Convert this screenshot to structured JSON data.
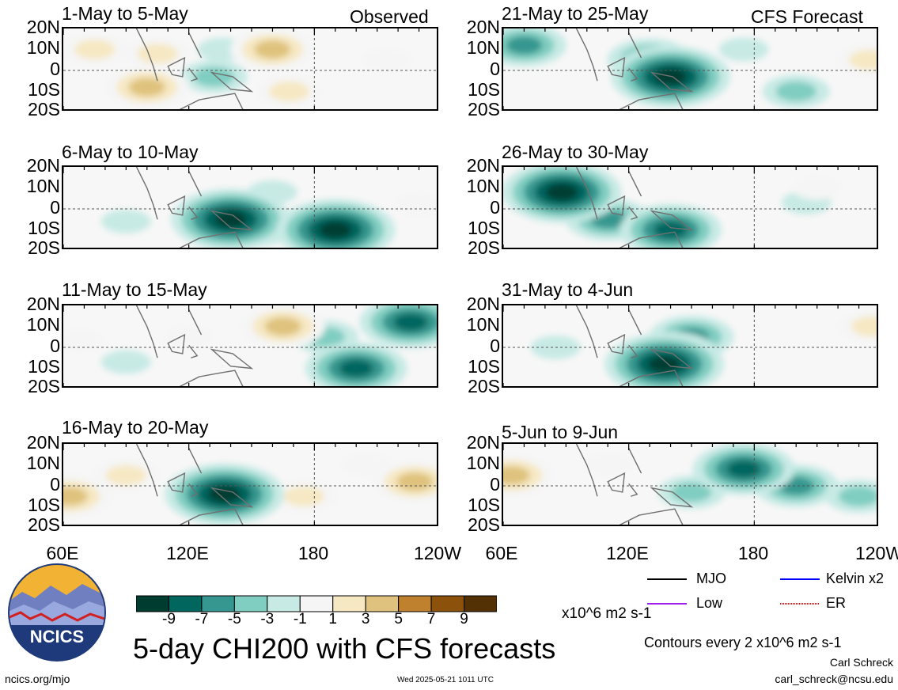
{
  "figure": {
    "title": "5-day CHI200 with CFS forecasts",
    "observed_label": "Observed",
    "forecast_label": "CFS Forecast",
    "site": "ncics.org/mjo",
    "timestamp": "Wed 2025-05-21 1011 UTC",
    "author": "Carl Schreck",
    "email": "carl_schreck@ncsu.edu",
    "contour_note": "Contours every 2 x10^6 m2 s-1",
    "logo_text": "NCICS"
  },
  "colorbar": {
    "ticks": [
      "-9",
      "-7",
      "-5",
      "-3",
      "-1",
      "1",
      "3",
      "5",
      "7",
      "9"
    ],
    "units": "x10^6 m2 s-1",
    "colors": [
      "#003c30",
      "#01665e",
      "#35978f",
      "#80cdc1",
      "#c7eae5",
      "#f5f5f5",
      "#f6e8c3",
      "#dfc27d",
      "#bf812d",
      "#8c510a",
      "#543005"
    ]
  },
  "legend": [
    {
      "label": "MJO",
      "color": "#000000",
      "style": "solid"
    },
    {
      "label": "Kelvin x2",
      "color": "#0000ff",
      "style": "solid"
    },
    {
      "label": "Low",
      "color": "#a020f0",
      "style": "solid"
    },
    {
      "label": "ER",
      "color": "#ff0000",
      "style": "solid"
    }
  ],
  "axes": {
    "lat_labels": [
      "20N",
      "10N",
      "0",
      "10S",
      "20S"
    ],
    "lon_labels": [
      "60E",
      "120E",
      "180",
      "120W"
    ]
  },
  "chart_data": [
    {
      "type": "heatmap",
      "title": "1-May to 5-May",
      "source": "Observed",
      "anomalies": [
        {
          "lon": 75,
          "lat": 10,
          "value": 3
        },
        {
          "lon": 100,
          "lat": -8,
          "value": 5
        },
        {
          "lon": 105,
          "lat": 8,
          "value": 3
        },
        {
          "lon": 136,
          "lat": 10,
          "value": -1
        },
        {
          "lon": 132,
          "lat": -3,
          "value": -3
        },
        {
          "lon": 160,
          "lat": 10,
          "value": 5
        },
        {
          "lon": 168,
          "lat": -10,
          "value": 3
        },
        {
          "lon": 215,
          "lat": 5,
          "value": 1
        }
      ]
    },
    {
      "type": "heatmap",
      "title": "6-May to 10-May",
      "source": "Observed",
      "anomalies": [
        {
          "lon": 150,
          "lat": -8,
          "value": -5
        },
        {
          "lon": 140,
          "lat": -5,
          "value": -9
        },
        {
          "lon": 190,
          "lat": -10,
          "value": -9
        },
        {
          "lon": 160,
          "lat": 8,
          "value": -1
        },
        {
          "lon": 90,
          "lat": -6,
          "value": -1
        },
        {
          "lon": 230,
          "lat": 2,
          "value": 1
        }
      ]
    },
    {
      "type": "heatmap",
      "title": "11-May to 15-May",
      "source": "Observed",
      "anomalies": [
        {
          "lon": 165,
          "lat": 10,
          "value": 5
        },
        {
          "lon": 200,
          "lat": -10,
          "value": -7
        },
        {
          "lon": 226,
          "lat": 12,
          "value": -7
        },
        {
          "lon": 185,
          "lat": 5,
          "value": -3
        },
        {
          "lon": 90,
          "lat": -7,
          "value": -1
        },
        {
          "lon": 120,
          "lat": 5,
          "value": 1
        },
        {
          "lon": 68,
          "lat": 3,
          "value": 1
        }
      ]
    },
    {
      "type": "heatmap",
      "title": "16-May to 20-May",
      "source": "Observed",
      "anomalies": [
        {
          "lon": 140,
          "lat": 0,
          "value": -5
        },
        {
          "lon": 137,
          "lat": -4,
          "value": -9
        },
        {
          "lon": 63,
          "lat": -5,
          "value": 5
        },
        {
          "lon": 90,
          "lat": 5,
          "value": 3
        },
        {
          "lon": 175,
          "lat": -5,
          "value": 3
        },
        {
          "lon": 228,
          "lat": 2,
          "value": 5
        },
        {
          "lon": 205,
          "lat": 10,
          "value": 1
        }
      ]
    },
    {
      "type": "heatmap",
      "title": "21-May to 25-May",
      "source": "CFS Forecast",
      "anomalies": [
        {
          "lon": 70,
          "lat": 12,
          "value": -5
        },
        {
          "lon": 130,
          "lat": 5,
          "value": -5
        },
        {
          "lon": 140,
          "lat": -3,
          "value": -9
        },
        {
          "lon": 200,
          "lat": -10,
          "value": -3
        },
        {
          "lon": 175,
          "lat": 10,
          "value": -1
        },
        {
          "lon": 235,
          "lat": 5,
          "value": 3
        }
      ]
    },
    {
      "type": "heatmap",
      "title": "26-May to 30-May",
      "source": "CFS Forecast",
      "anomalies": [
        {
          "lon": 88,
          "lat": 8,
          "value": -9
        },
        {
          "lon": 110,
          "lat": -5,
          "value": -5
        },
        {
          "lon": 140,
          "lat": -10,
          "value": -7
        },
        {
          "lon": 205,
          "lat": 3,
          "value": -1
        },
        {
          "lon": 210,
          "lat": 10,
          "value": 1
        }
      ]
    },
    {
      "type": "heatmap",
      "title": "31-May to 4-Jun",
      "source": "CFS Forecast",
      "anomalies": [
        {
          "lon": 140,
          "lat": -5,
          "value": -7
        },
        {
          "lon": 137,
          "lat": -8,
          "value": -9
        },
        {
          "lon": 150,
          "lat": 5,
          "value": -5
        },
        {
          "lon": 236,
          "lat": 10,
          "value": 3
        },
        {
          "lon": 85,
          "lat": 0,
          "value": -1
        }
      ]
    },
    {
      "type": "heatmap",
      "title": "5-Jun to 9-Jun",
      "source": "CFS Forecast",
      "anomalies": [
        {
          "lon": 175,
          "lat": 8,
          "value": -7
        },
        {
          "lon": 150,
          "lat": -3,
          "value": -3
        },
        {
          "lon": 200,
          "lat": 0,
          "value": -5
        },
        {
          "lon": 64,
          "lat": 5,
          "value": 5
        },
        {
          "lon": 110,
          "lat": 10,
          "value": 1
        },
        {
          "lon": 230,
          "lat": -5,
          "value": -3
        }
      ]
    }
  ]
}
